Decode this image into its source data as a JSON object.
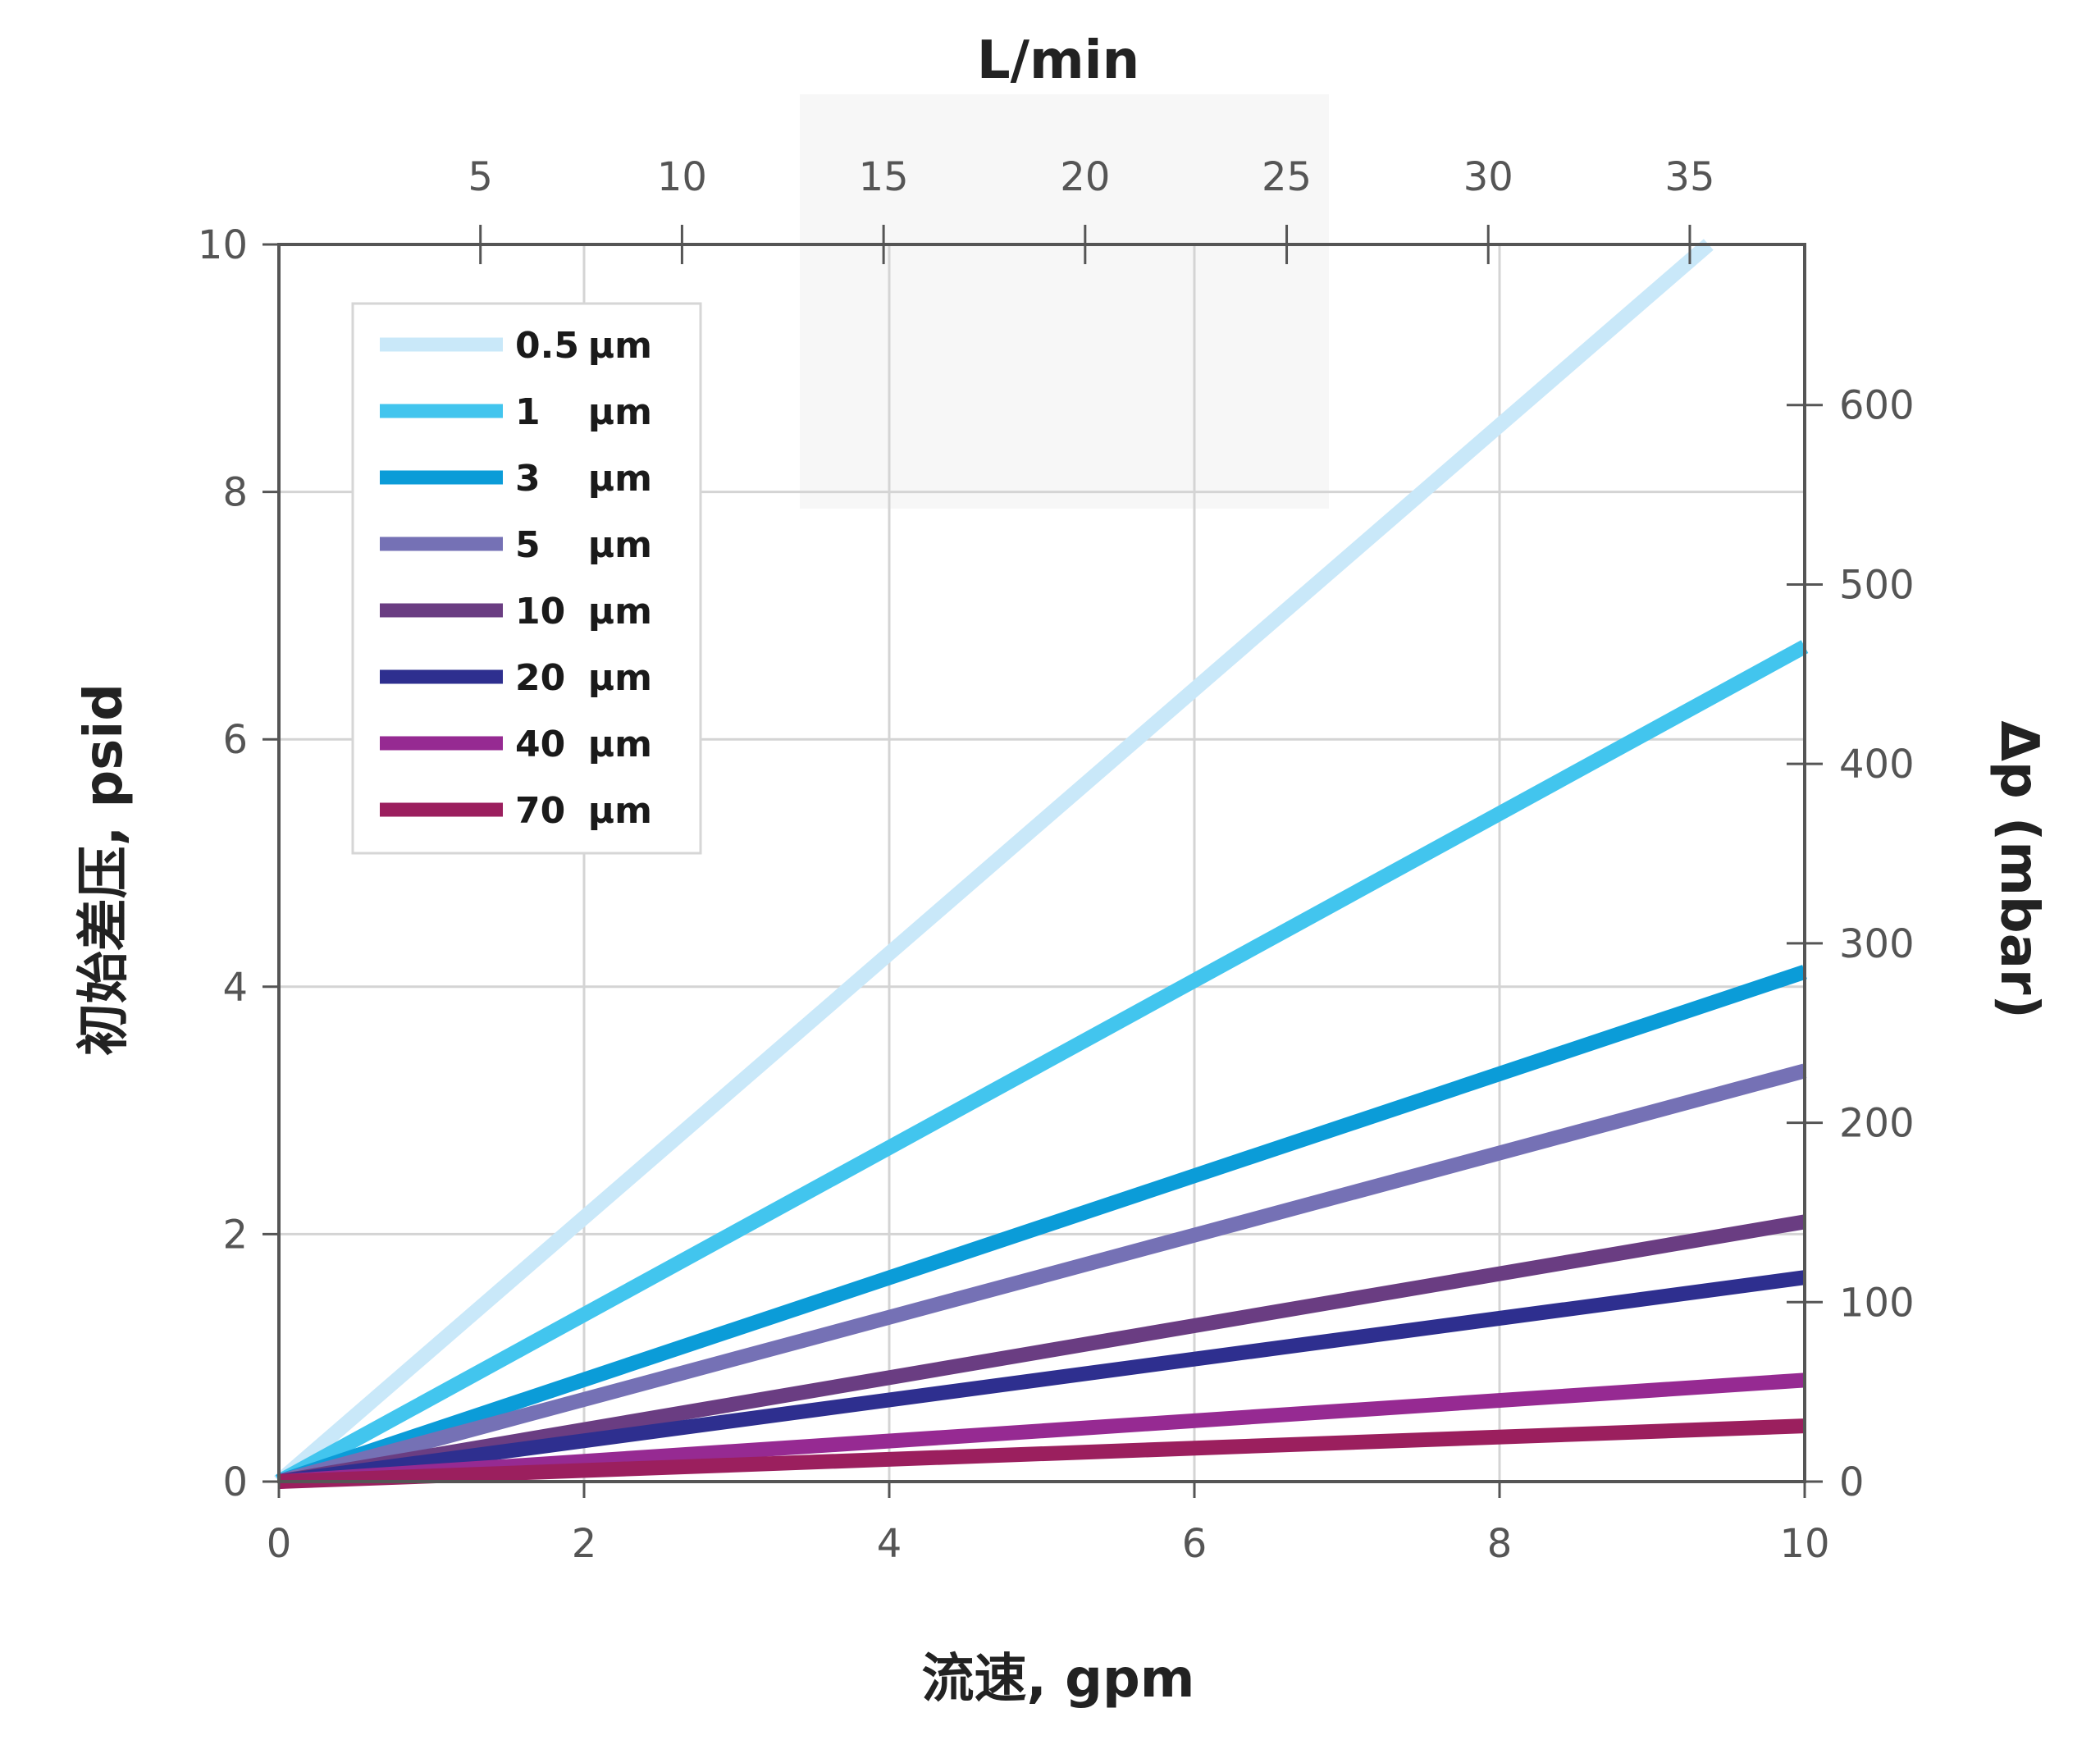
{
  "chart_data": {
    "type": "line",
    "x_bottom": {
      "label": "流速, gpm",
      "min": 0,
      "max": 10,
      "ticks": [
        "0",
        "2",
        "4",
        "6",
        "8",
        "10"
      ]
    },
    "x_top": {
      "label": "L/min",
      "ticks": [
        "5",
        "10",
        "15",
        "20",
        "25",
        "30",
        "35"
      ]
    },
    "y_left": {
      "label": "初始差压, psid",
      "min": 0,
      "max": 10,
      "ticks": [
        "0",
        "2",
        "4",
        "6",
        "8",
        "10"
      ]
    },
    "y_right": {
      "label": "Δp (mbar)",
      "ticks": [
        "0",
        "100",
        "200",
        "300",
        "400",
        "500",
        "600"
      ]
    },
    "grid": true,
    "legend_position": "top-left",
    "series": [
      {
        "name": "0.5 µm",
        "color": "#c9e8f9",
        "x": [
          0,
          9.37
        ],
        "y": [
          0,
          10
        ]
      },
      {
        "name": "1 µm",
        "color": "#42c5ee",
        "x": [
          0,
          10
        ],
        "y": [
          0,
          6.75
        ]
      },
      {
        "name": "3 µm",
        "color": "#0b9cd8",
        "x": [
          0,
          10
        ],
        "y": [
          0,
          4.12
        ]
      },
      {
        "name": "5 µm",
        "color": "#7571b5",
        "x": [
          0,
          10
        ],
        "y": [
          0,
          3.32
        ]
      },
      {
        "name": "10 µm",
        "color": "#6a3d82",
        "x": [
          0,
          10
        ],
        "y": [
          0,
          2.1
        ]
      },
      {
        "name": "20 µm",
        "color": "#2e2f8f",
        "x": [
          0,
          10
        ],
        "y": [
          0,
          1.65
        ]
      },
      {
        "name": "40 µm",
        "color": "#962a92",
        "x": [
          0,
          10
        ],
        "y": [
          0,
          0.82
        ]
      },
      {
        "name": "70 µm",
        "color": "#9b1f5e",
        "x": [
          0,
          10
        ],
        "y": [
          0,
          0.45
        ]
      }
    ]
  }
}
